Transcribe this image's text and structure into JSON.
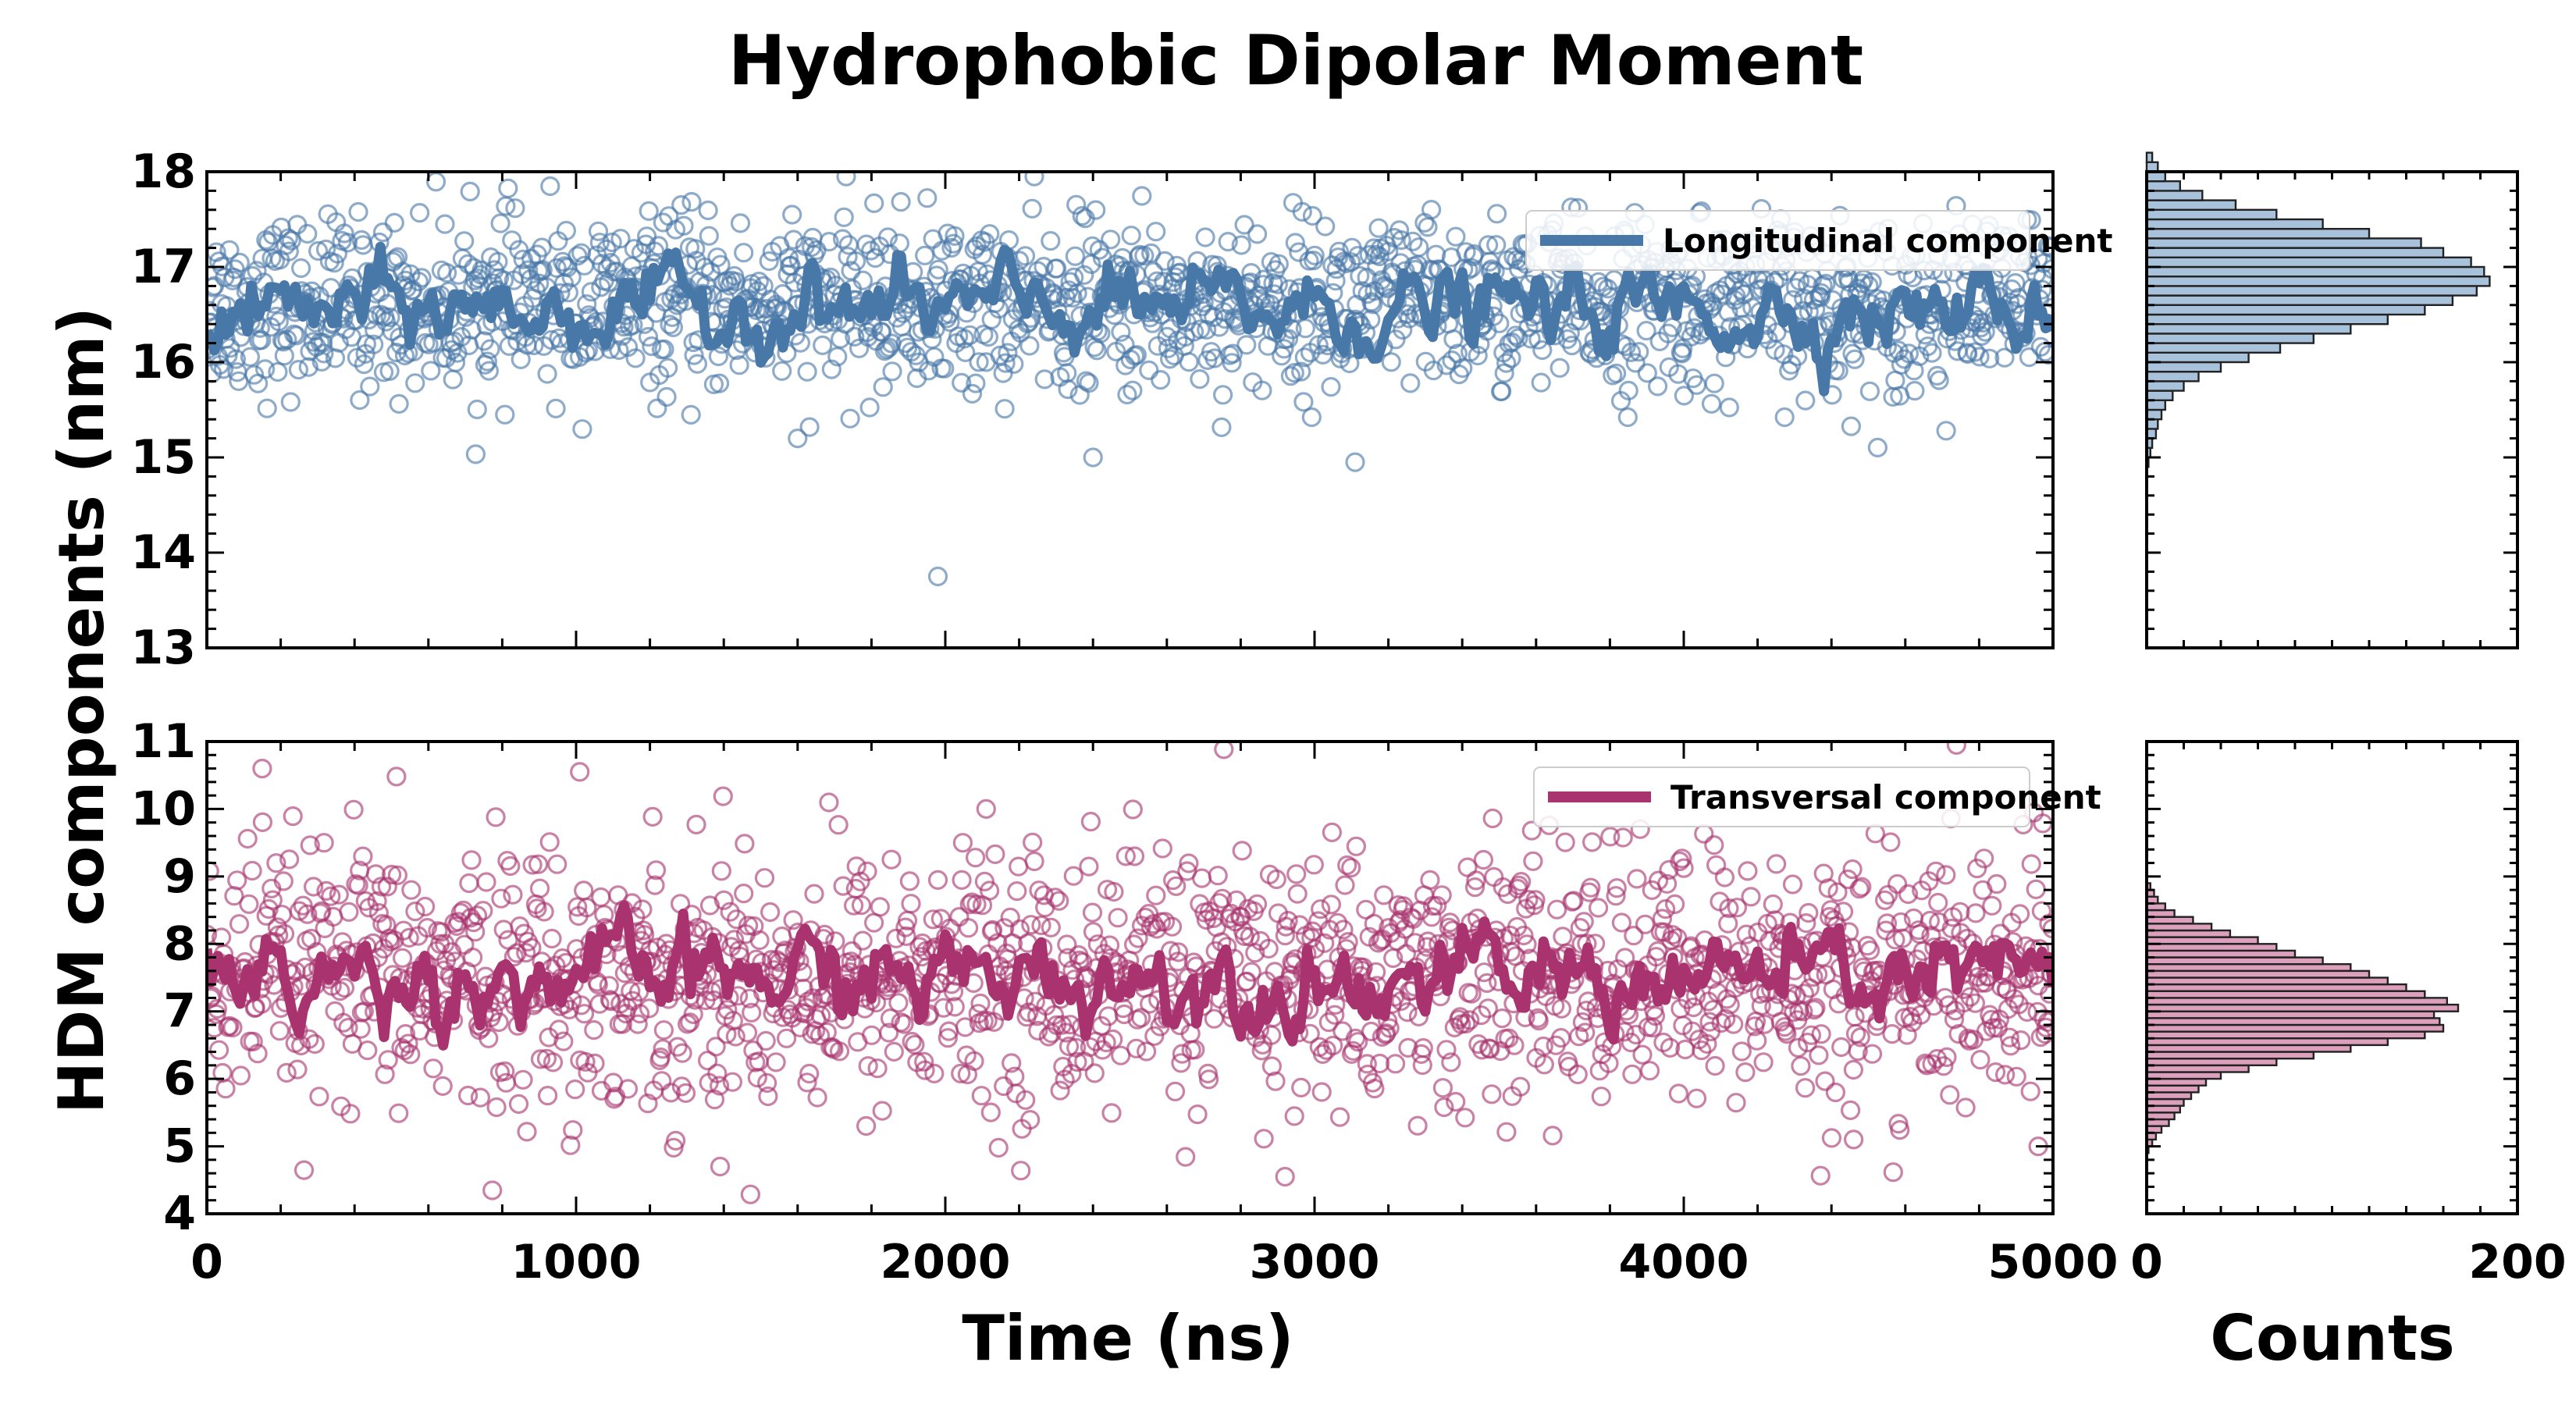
{
  "chart_data": {
    "type": "scatter",
    "title": "Hydrophobic Dipolar Moment",
    "ylabel": "HDM components (nm)",
    "xlabel": "Time (ns)",
    "hist_xlabel": "Counts",
    "xlim": [
      0,
      5000
    ],
    "hist_xlim": [
      0,
      200
    ],
    "x_ticks": [
      "0",
      "1000",
      "2000",
      "3000",
      "4000",
      "5000"
    ],
    "hist_x_ticks": [
      "0",
      "200"
    ],
    "panels": [
      {
        "name": "longitudinal",
        "series_name": "Longitudinal component",
        "color": "#4878a8",
        "hist_fill": "#a9c2dc",
        "ylim": [
          13,
          18
        ],
        "y_ticks": [
          "13",
          "14",
          "15",
          "16",
          "17",
          "18"
        ],
        "scatter_mean": 16.6,
        "scatter_std": 0.45,
        "line_mean": 16.55,
        "line_std": 0.22,
        "outliers": [
          {
            "x": 1980,
            "y": 13.75
          },
          {
            "x": 3110,
            "y": 14.95
          },
          {
            "x": 1600,
            "y": 15.2
          },
          {
            "x": 2400,
            "y": 15.0
          }
        ],
        "histogram": {
          "bin_start": 14.9,
          "bin_width": 0.1,
          "counts": [
            1,
            2,
            3,
            5,
            6,
            8,
            10,
            14,
            20,
            28,
            40,
            55,
            72,
            90,
            110,
            130,
            150,
            165,
            178,
            185,
            182,
            175,
            160,
            148,
            120,
            95,
            70,
            48,
            30,
            18,
            10,
            6,
            3
          ]
        }
      },
      {
        "name": "transversal",
        "series_name": "Transversal component",
        "color": "#a8336e",
        "hist_fill": "#dca0bd",
        "ylim": [
          4,
          11
        ],
        "y_ticks": [
          "4",
          "5",
          "6",
          "7",
          "8",
          "9",
          "10",
          "11"
        ],
        "scatter_mean": 7.5,
        "scatter_std": 0.95,
        "line_mean": 7.5,
        "line_std": 0.35,
        "outliers": [
          {
            "x": 150,
            "y": 10.6
          },
          {
            "x": 1010,
            "y": 10.55
          },
          {
            "x": 2920,
            "y": 4.55
          },
          {
            "x": 1390,
            "y": 4.7
          },
          {
            "x": 4460,
            "y": 5.1
          },
          {
            "x": 4960,
            "y": 5.0
          }
        ],
        "histogram": {
          "bin_start": 4.9,
          "bin_width": 0.1,
          "counts": [
            1,
            3,
            5,
            8,
            12,
            15,
            18,
            20,
            24,
            28,
            32,
            40,
            55,
            70,
            90,
            110,
            130,
            150,
            160,
            158,
            155,
            168,
            162,
            150,
            140,
            130,
            120,
            110,
            95,
            80,
            70,
            60,
            45,
            35,
            25,
            15,
            10,
            6,
            4,
            2
          ]
        }
      }
    ]
  }
}
